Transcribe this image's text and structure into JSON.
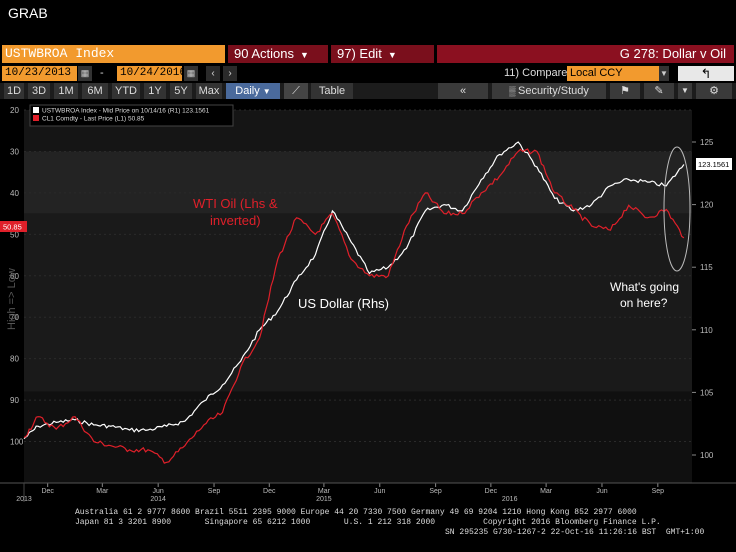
{
  "header": {
    "grab_label": "GRAB",
    "ticker": "USTWBROA Index",
    "actions_label": "90 Actions",
    "edit_label": "97) Edit",
    "chart_title": "G 278: Dollar v Oil"
  },
  "daterow": {
    "start_date": "10/23/2013",
    "end_date": "10/24/2016",
    "dash": "-",
    "compare_label": "11) Compare",
    "currency": "Local CCY"
  },
  "toolbar": {
    "ranges": [
      "1D",
      "3D",
      "1M",
      "6M",
      "YTD",
      "1Y",
      "5Y",
      "Max"
    ],
    "frequency": "Daily",
    "table_label": "Table",
    "security_study_label": "Security/Study"
  },
  "colors": {
    "usd": "#ffffff",
    "oil": "#e0202a",
    "orange": "#f29a2e",
    "red_bar": "#7a0f1c"
  },
  "chart_data": {
    "type": "line",
    "legend": [
      "USTWBROA Index - Mid Price on 10/14/16 (R1)  123.1561",
      "CL1 Comdty - Last Price (L1)  50.85"
    ],
    "last_values": {
      "usd": "123.1561",
      "oil": "50.85"
    },
    "x_ticks": [
      {
        "label": "Dec",
        "date": "2013-12-01"
      },
      {
        "label": "Mar",
        "date": "2014-03-01"
      },
      {
        "label": "Jun",
        "date": "2014-06-01"
      },
      {
        "label": "Sep",
        "date": "2014-09-01"
      },
      {
        "label": "Dec",
        "date": "2014-12-01"
      },
      {
        "label": "Mar",
        "date": "2015-03-01"
      },
      {
        "label": "Jun",
        "date": "2015-06-01"
      },
      {
        "label": "Sep",
        "date": "2015-09-01"
      },
      {
        "label": "Dec",
        "date": "2015-12-01"
      },
      {
        "label": "Mar",
        "date": "2016-03-01"
      },
      {
        "label": "Jun",
        "date": "2016-06-01"
      },
      {
        "label": "Sep",
        "date": "2016-09-01"
      }
    ],
    "year_labels": [
      {
        "label": "2013",
        "date": "2013-10-23"
      },
      {
        "label": "2014",
        "date": "2014-06-01"
      },
      {
        "label": "2015",
        "date": "2015-03-01"
      },
      {
        "label": "2016",
        "date": "2016-01-01"
      }
    ],
    "x_range": [
      "2013-10-23",
      "2016-10-24"
    ],
    "left_axis": {
      "label": "High => Low",
      "inverted": true,
      "ylim": [
        20,
        110
      ],
      "ticks": [
        20,
        30,
        40,
        50,
        60,
        70,
        80,
        90,
        100
      ]
    },
    "right_axis": {
      "ylim": [
        98,
        127
      ],
      "ticks": [
        100,
        105,
        110,
        115,
        120,
        125
      ]
    },
    "series": [
      {
        "name": "US Dollar (Rhs)",
        "axis": "right",
        "color": "#ffffff",
        "points": [
          [
            "2013-10-23",
            101.3
          ],
          [
            "2013-11-15",
            102.3
          ],
          [
            "2013-12-15",
            102.6
          ],
          [
            "2014-01-15",
            102.8
          ],
          [
            "2014-02-15",
            102.4
          ],
          [
            "2014-03-15",
            102.3
          ],
          [
            "2014-04-15",
            102.0
          ],
          [
            "2014-05-15",
            102.0
          ],
          [
            "2014-06-15",
            102.3
          ],
          [
            "2014-07-15",
            102.7
          ],
          [
            "2014-08-15",
            104.3
          ],
          [
            "2014-09-15",
            105.6
          ],
          [
            "2014-10-15",
            107.5
          ],
          [
            "2014-11-15",
            110.0
          ],
          [
            "2014-12-15",
            111.5
          ],
          [
            "2015-01-15",
            114.0
          ],
          [
            "2015-02-15",
            116.0
          ],
          [
            "2015-03-15",
            119.5
          ],
          [
            "2015-04-15",
            117.0
          ],
          [
            "2015-05-15",
            114.5
          ],
          [
            "2015-06-15",
            115.0
          ],
          [
            "2015-07-15",
            116.5
          ],
          [
            "2015-08-15",
            119.5
          ],
          [
            "2015-09-15",
            120.0
          ],
          [
            "2015-10-15",
            119.5
          ],
          [
            "2015-11-15",
            122.0
          ],
          [
            "2015-12-15",
            124.0
          ],
          [
            "2016-01-15",
            125.0
          ],
          [
            "2016-02-15",
            123.0
          ],
          [
            "2016-03-15",
            120.5
          ],
          [
            "2016-04-15",
            119.5
          ],
          [
            "2016-05-15",
            120.0
          ],
          [
            "2016-06-15",
            121.5
          ],
          [
            "2016-07-15",
            122.0
          ],
          [
            "2016-08-15",
            121.8
          ],
          [
            "2016-09-15",
            121.5
          ],
          [
            "2016-10-14",
            123.2
          ]
        ]
      },
      {
        "name": "WTI Oil (Lhs & inverted)",
        "axis": "left",
        "color": "#e0202a",
        "points": [
          [
            "2013-10-23",
            99.0
          ],
          [
            "2013-11-15",
            94.0
          ],
          [
            "2013-12-15",
            97.0
          ],
          [
            "2014-01-15",
            94.0
          ],
          [
            "2014-02-15",
            100.0
          ],
          [
            "2014-03-15",
            101.0
          ],
          [
            "2014-04-15",
            102.0
          ],
          [
            "2014-05-15",
            102.0
          ],
          [
            "2014-06-15",
            105.0
          ],
          [
            "2014-07-15",
            101.0
          ],
          [
            "2014-08-15",
            96.0
          ],
          [
            "2014-09-15",
            93.0
          ],
          [
            "2014-10-15",
            82.0
          ],
          [
            "2014-11-15",
            75.0
          ],
          [
            "2014-12-15",
            56.0
          ],
          [
            "2015-01-15",
            46.0
          ],
          [
            "2015-02-15",
            50.0
          ],
          [
            "2015-03-15",
            45.0
          ],
          [
            "2015-04-15",
            56.0
          ],
          [
            "2015-05-15",
            60.0
          ],
          [
            "2015-06-15",
            60.0
          ],
          [
            "2015-07-15",
            48.0
          ],
          [
            "2015-08-15",
            40.0
          ],
          [
            "2015-09-15",
            45.0
          ],
          [
            "2015-10-15",
            45.0
          ],
          [
            "2015-11-15",
            40.0
          ],
          [
            "2015-12-15",
            36.0
          ],
          [
            "2016-01-15",
            30.0
          ],
          [
            "2016-02-15",
            30.0
          ],
          [
            "2016-03-15",
            40.0
          ],
          [
            "2016-04-15",
            44.0
          ],
          [
            "2016-05-15",
            48.0
          ],
          [
            "2016-06-15",
            49.0
          ],
          [
            "2016-07-15",
            43.0
          ],
          [
            "2016-08-15",
            46.0
          ],
          [
            "2016-09-15",
            44.0
          ],
          [
            "2016-10-14",
            50.85
          ]
        ]
      }
    ],
    "annotations": {
      "oil_label": "WTI Oil (Lhs &\ninverted)",
      "usd_label": "US Dollar (Rhs)",
      "question": "What's going\non here?"
    }
  },
  "footer": {
    "line1": "Australia 61 2 9777 8600 Brazil 5511 2395 9000 Europe 44 20 7330 7500 Germany 49 69 9204 1210 Hong Kong 852 2977 6000",
    "line2": "Japan 81 3 3201 8900       Singapore 65 6212 1000       U.S. 1 212 318 2000          Copyright 2016 Bloomberg Finance L.P.",
    "line3": "SN 295235 G730-1267-2 22-Oct-16 11:26:16 BST  GMT+1:00"
  }
}
